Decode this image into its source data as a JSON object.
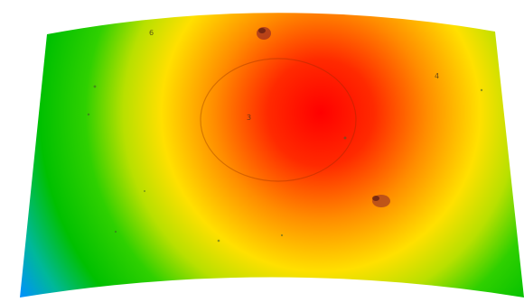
{
  "image": {
    "kind": "deviation-heatmap-surface",
    "colormap": [
      "#1a1aff",
      "#00b3ff",
      "#00d000",
      "#b8e000",
      "#ffe000",
      "#ff8c00",
      "#ff0000"
    ],
    "background": "#ffffff"
  },
  "markers": [
    {
      "label": "6"
    },
    {
      "label": "3"
    },
    {
      "label": "4"
    }
  ]
}
